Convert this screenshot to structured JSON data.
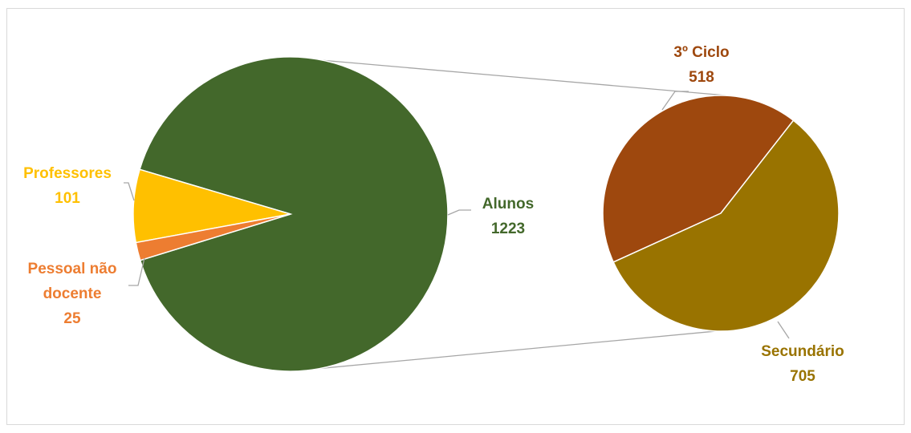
{
  "chart_data": [
    {
      "type": "pie",
      "role": "primary",
      "slices": [
        {
          "label": "Alunos",
          "value": 1223,
          "color": "#43682b"
        },
        {
          "label": "Professores",
          "value": 101,
          "color": "#ffc000"
        },
        {
          "label": "Pessoal não docente",
          "value": 25,
          "color": "#ed7d31"
        }
      ]
    },
    {
      "type": "pie",
      "role": "breakdown",
      "breakdown_of": "Alunos",
      "slices": [
        {
          "label": "3º Ciclo",
          "value": 518,
          "color": "#9e480e"
        },
        {
          "label": "Secundário",
          "value": 705,
          "color": "#997300"
        }
      ]
    }
  ],
  "labels": {
    "alunos_name": "Alunos",
    "alunos_value": "1223",
    "professores_name": "Professores",
    "professores_value": "101",
    "pessoal_line1": "Pessoal não",
    "pessoal_line2": "docente",
    "pessoal_value": "25",
    "ciclo_name": "3º Ciclo",
    "ciclo_value": "518",
    "secundario_name": "Secundário",
    "secundario_value": "705"
  },
  "colors": {
    "connector": "#a6a6a6",
    "leader": "#a6a6a6"
  }
}
